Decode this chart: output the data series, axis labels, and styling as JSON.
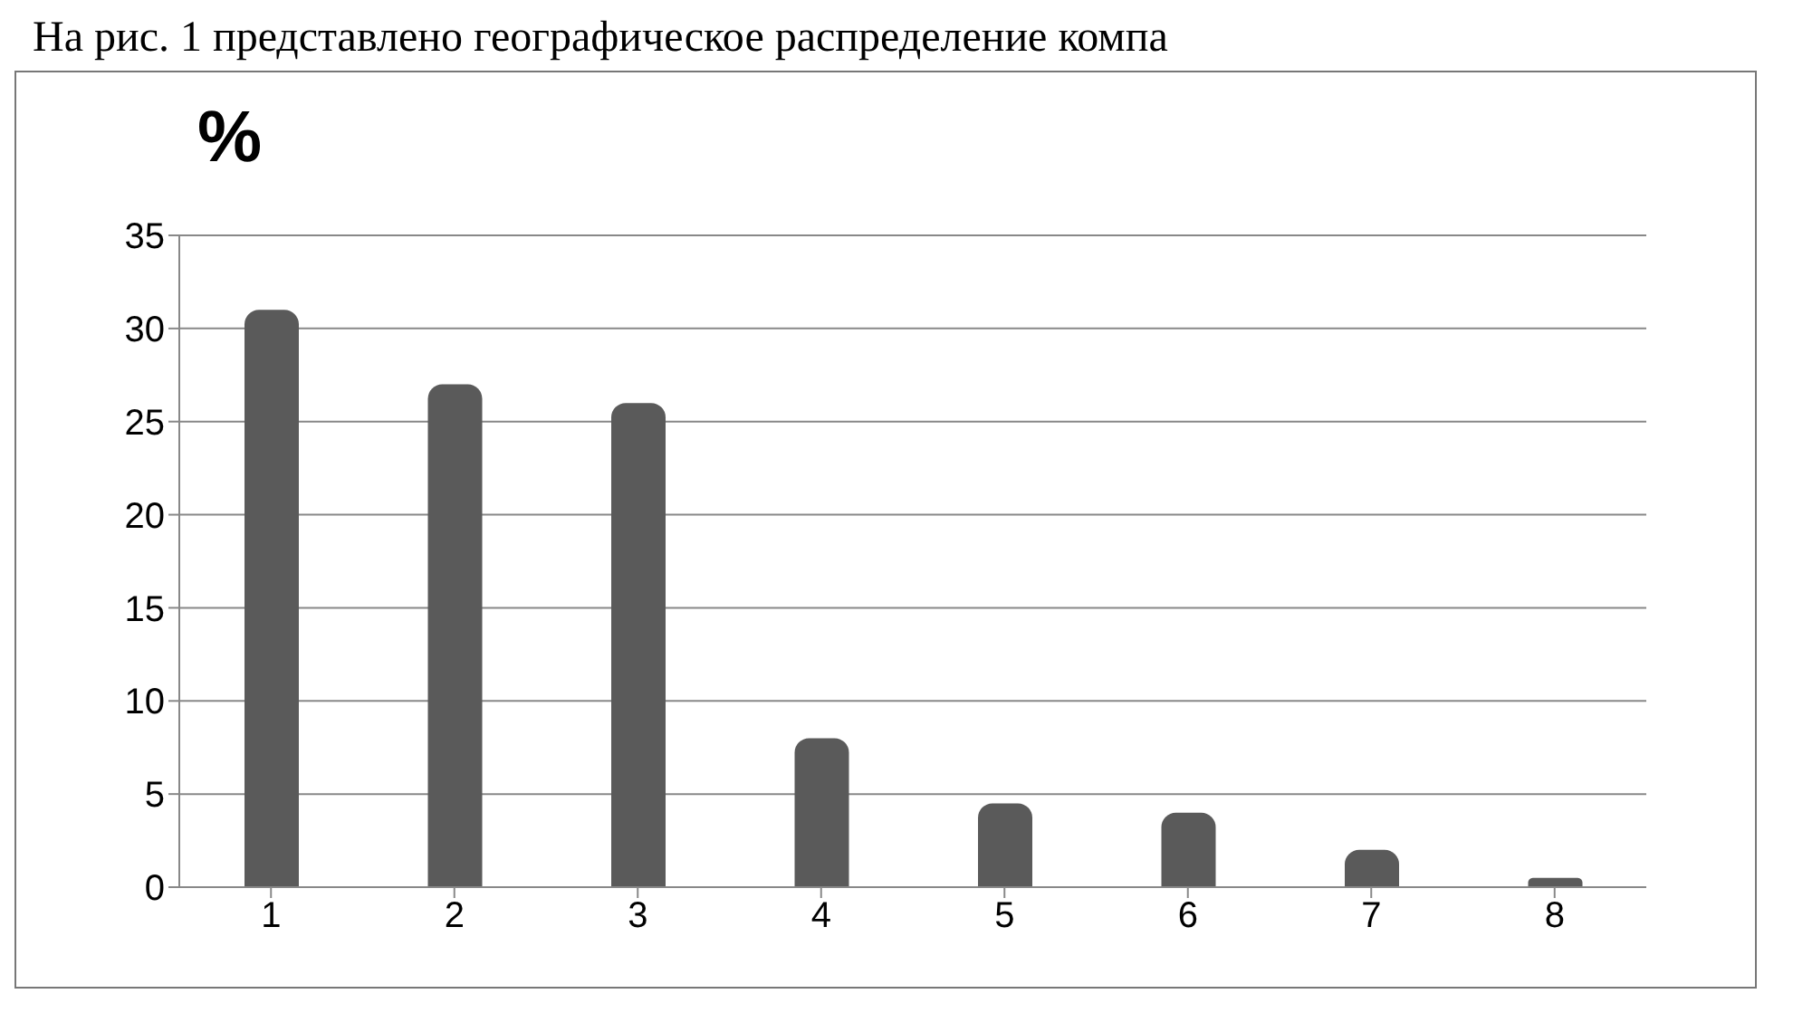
{
  "chart_data": {
    "type": "bar",
    "ylabel": "%",
    "annotations": [
      "На рис. 1 представлено географическое распределение компа"
    ],
    "categories": [
      "1",
      "2",
      "3",
      "4",
      "5",
      "6",
      "7",
      "8"
    ],
    "values": [
      31,
      27,
      26,
      8,
      4.5,
      4,
      2,
      0.5
    ],
    "color": "#5a5a5a",
    "ylim": [
      0,
      35
    ],
    "yticks": [
      0,
      5,
      10,
      15,
      20,
      25,
      30,
      35
    ],
    "grid": "y"
  }
}
